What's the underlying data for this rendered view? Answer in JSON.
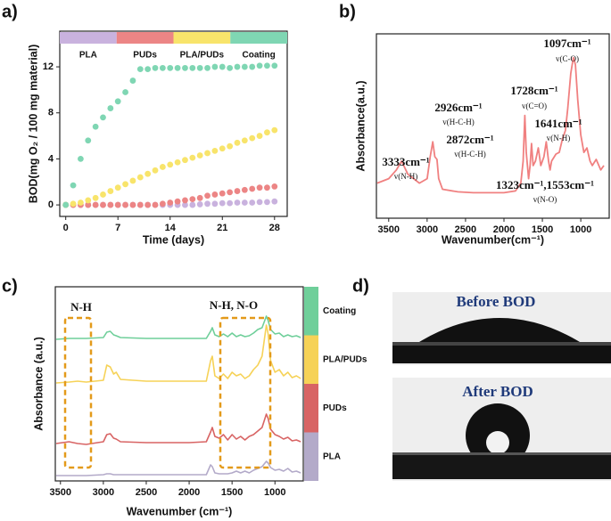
{
  "panel_labels": [
    "a)",
    "b)",
    "c)",
    "d)"
  ],
  "photos": {
    "captions": [
      "Before BOD",
      "After BOD"
    ]
  },
  "chart_data": [
    {
      "type": "scatter",
      "x_label": "Time (days)",
      "y_label": "BOD(mg O₂ / 100 mg material)",
      "x": [
        0,
        1,
        2,
        3,
        4,
        5,
        6,
        7,
        8,
        9,
        10,
        11,
        12,
        13,
        14,
        15,
        16,
        17,
        18,
        19,
        20,
        21,
        22,
        23,
        24,
        25,
        26,
        27,
        28
      ],
      "xlim": [
        -0.8,
        29.7
      ],
      "xticks": [
        0,
        7,
        14,
        21,
        28
      ],
      "ylim": [
        -1,
        15.1
      ],
      "yticks": [
        0,
        4,
        8,
        12
      ],
      "series": [
        {
          "name": "PLA",
          "color": "#c9b2de",
          "values": [
            0,
            0,
            0,
            0,
            0,
            0,
            0,
            0,
            0,
            0,
            0,
            0,
            0,
            0,
            0,
            0,
            0,
            0,
            0.05,
            0.1,
            0.1,
            0.15,
            0.15,
            0.2,
            0.2,
            0.2,
            0.25,
            0.25,
            0.3
          ]
        },
        {
          "name": "PUDs",
          "color": "#ec8585",
          "values": [
            0,
            0,
            0,
            0,
            0,
            0,
            0,
            0,
            0,
            0,
            0,
            0,
            0,
            0.1,
            0.2,
            0.3,
            0.4,
            0.5,
            0.6,
            0.8,
            0.9,
            1.0,
            1.1,
            1.2,
            1.3,
            1.4,
            1.5,
            1.5,
            1.6
          ]
        },
        {
          "name": "PLA/PUDs",
          "color": "#f8e46b",
          "values": [
            0,
            0.1,
            0.2,
            0.4,
            0.6,
            0.9,
            1.2,
            1.5,
            1.8,
            2.1,
            2.4,
            2.7,
            3.0,
            3.3,
            3.5,
            3.7,
            3.9,
            4.1,
            4.3,
            4.5,
            4.7,
            4.9,
            5.1,
            5.4,
            5.6,
            5.8,
            6.0,
            6.3,
            6.5
          ]
        },
        {
          "name": "Coating",
          "color": "#7fd6b3",
          "values": [
            0,
            1.7,
            4.0,
            5.6,
            6.8,
            7.6,
            8.4,
            9.0,
            9.8,
            10.8,
            11.8,
            11.8,
            11.9,
            11.9,
            11.9,
            11.9,
            11.9,
            11.9,
            11.9,
            11.9,
            12.0,
            12.0,
            11.9,
            12.0,
            12.0,
            12.0,
            12.1,
            12.1,
            12.1
          ]
        }
      ]
    },
    {
      "type": "line",
      "x_label": "Wavenumber(cm⁻¹)",
      "y_label": "Absorbance(a.u.)",
      "color": "#f08080",
      "xlim": [
        3660,
        630
      ],
      "xticks": [
        3500,
        3000,
        2500,
        2000,
        1500,
        1000
      ],
      "ylim": [
        0,
        210
      ],
      "x": [
        3650,
        3500,
        3400,
        3333,
        3250,
        3100,
        3000,
        2960,
        2926,
        2900,
        2872,
        2850,
        2800,
        2600,
        2400,
        2200,
        2000,
        1850,
        1780,
        1750,
        1728,
        1710,
        1680,
        1660,
        1641,
        1620,
        1590,
        1553,
        1520,
        1480,
        1450,
        1420,
        1400,
        1380,
        1323,
        1280,
        1240,
        1200,
        1170,
        1130,
        1097,
        1070,
        1040,
        1000,
        960,
        920,
        880,
        850,
        800,
        740,
        700
      ],
      "values": [
        40,
        45,
        55,
        65,
        50,
        40,
        45,
        70,
        87,
        70,
        67,
        45,
        33,
        30,
        29,
        29,
        29,
        31,
        40,
        65,
        117,
        75,
        45,
        60,
        85,
        60,
        65,
        80,
        60,
        70,
        87,
        65,
        55,
        65,
        73,
        75,
        90,
        100,
        125,
        165,
        183,
        175,
        135,
        95,
        75,
        80,
        65,
        60,
        67,
        55,
        60
      ],
      "annotations": [
        "3333cm⁻¹",
        "v(N-H)",
        "2926cm⁻¹",
        "v(H-C-H)",
        "2872cm⁻¹",
        "v(H-C-H)",
        "1728cm⁻¹",
        "v(C=O)",
        "1641cm⁻¹",
        "v(N-H)",
        "1097cm⁻¹",
        "v(C-O)",
        "1323cm⁻¹,1553cm⁻¹",
        "v(N-O)"
      ]
    },
    {
      "type": "line",
      "x_label": "Wavenumber (cm⁻¹)",
      "y_label": "Absorbance (a.u.)",
      "xlim": [
        3560,
        670
      ],
      "xticks": [
        3500,
        3000,
        2500,
        2000,
        1500,
        1000
      ],
      "ylim": [
        0,
        218
      ],
      "annotations": [
        "N-H",
        "N-H, N-O"
      ],
      "x": [
        3550,
        3400,
        3300,
        3200,
        3000,
        2960,
        2920,
        2880,
        2850,
        2800,
        2500,
        2000,
        1800,
        1750,
        1730,
        1700,
        1650,
        1600,
        1550,
        1500,
        1450,
        1400,
        1350,
        1300,
        1250,
        1200,
        1150,
        1100,
        1080,
        1050,
        1000,
        950,
        900,
        850,
        800,
        750,
        700
      ],
      "series": [
        {
          "name": "PLA",
          "color": "#b3aac9",
          "values": [
            6,
            6,
            6,
            6,
            7,
            8,
            8,
            7,
            7,
            7,
            7,
            7,
            7,
            18,
            16,
            9,
            8,
            8,
            8,
            9,
            11,
            9,
            11,
            9,
            12,
            14,
            16,
            22,
            20,
            15,
            12,
            13,
            11,
            14,
            10,
            11,
            9
          ]
        },
        {
          "name": "PUDs",
          "color": "#d86464",
          "values": [
            42,
            44,
            42,
            41,
            44,
            52,
            53,
            48,
            47,
            44,
            43,
            43,
            44,
            55,
            60,
            50,
            48,
            52,
            46,
            52,
            47,
            50,
            46,
            50,
            52,
            56,
            60,
            75,
            70,
            58,
            52,
            50,
            47,
            49,
            45,
            46,
            44
          ]
        },
        {
          "name": "PLA/PUDs",
          "color": "#f6d257",
          "values": [
            110,
            111,
            112,
            111,
            113,
            130,
            128,
            120,
            122,
            114,
            112,
            112,
            112,
            135,
            140,
            118,
            115,
            120,
            115,
            122,
            118,
            120,
            115,
            118,
            125,
            130,
            140,
            175,
            165,
            135,
            122,
            125,
            118,
            122,
            116,
            118,
            115
          ]
        },
        {
          "name": "Coating",
          "color": "#6fcf9a",
          "values": [
            159,
            160,
            160,
            160,
            161,
            167,
            168,
            164,
            163,
            161,
            160,
            160,
            160,
            168,
            172,
            164,
            162,
            165,
            162,
            166,
            162,
            164,
            162,
            163,
            166,
            170,
            172,
            185,
            180,
            170,
            165,
            166,
            162,
            164,
            162,
            163,
            161
          ]
        }
      ]
    }
  ]
}
